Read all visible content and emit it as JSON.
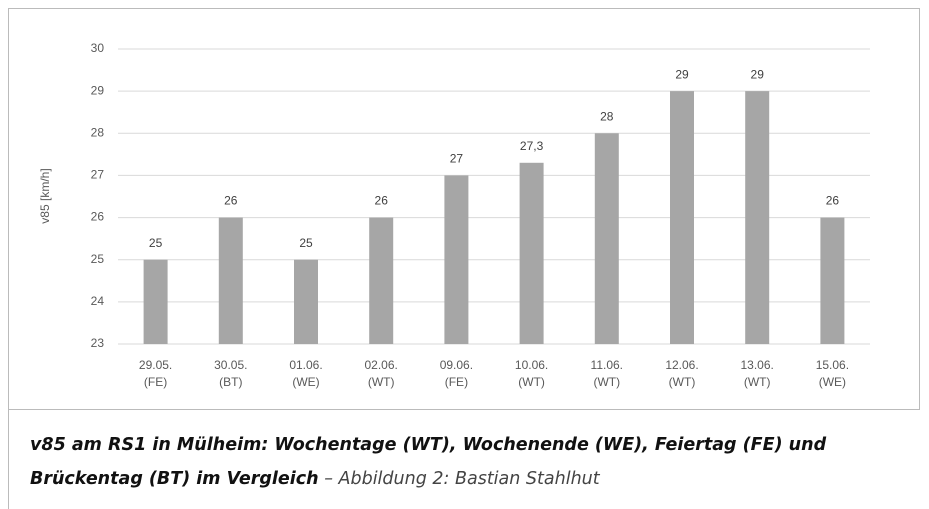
{
  "chart_data": {
    "type": "bar",
    "y_label": "v85 [km/h]",
    "categories": [
      [
        "29.05.",
        "(FE)"
      ],
      [
        "30.05.",
        "(BT)"
      ],
      [
        "01.06.",
        "(WE)"
      ],
      [
        "02.06.",
        "(WT)"
      ],
      [
        "09.06.",
        "(FE)"
      ],
      [
        "10.06.",
        "(WT)"
      ],
      [
        "11.06.",
        "(WT)"
      ],
      [
        "12.06.",
        "(WT)"
      ],
      [
        "13.06.",
        "(WT)"
      ],
      [
        "15.06.",
        "(WE)"
      ]
    ],
    "values": [
      25,
      26,
      25,
      26,
      27,
      27.3,
      28,
      29,
      29,
      26
    ],
    "value_labels": [
      "25",
      "26",
      "25",
      "26",
      "27",
      "27,3",
      "28",
      "29",
      "29",
      "26"
    ],
    "color": "#a6a6a6",
    "ylim": [
      23,
      30
    ],
    "yticks": [
      23,
      24,
      25,
      26,
      27,
      28,
      29,
      30
    ],
    "grid": true
  },
  "caption": {
    "title": "v85 am RS1 in Mülheim: Wochentage (WT), Wochenende (WE), Feiertag (FE) und Brückentag (BT) im Vergleich",
    "credit": " – Abbildung 2: Bastian Stahlhut"
  }
}
